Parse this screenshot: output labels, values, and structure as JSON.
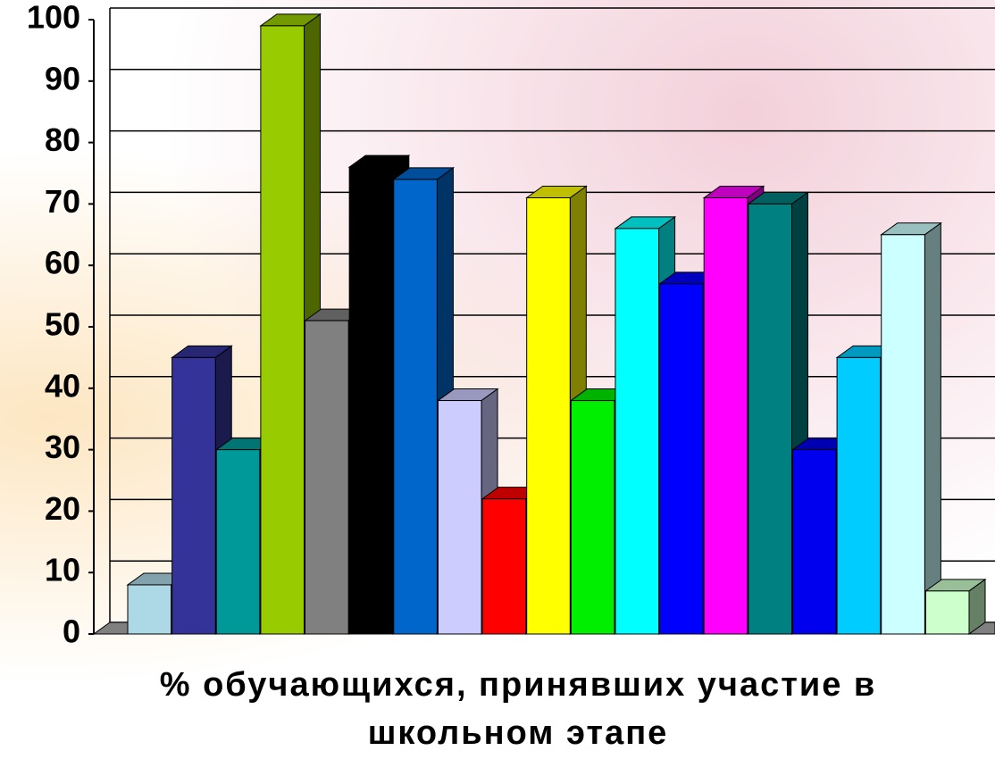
{
  "chart_data": {
    "type": "bar3d",
    "title": "% обучающихся, принявших участие в школьном этапе",
    "categories": [
      null,
      null,
      null,
      null,
      null,
      null,
      null,
      null,
      null,
      null,
      null,
      null,
      null,
      null,
      null,
      null,
      null,
      null,
      null
    ],
    "values": [
      8,
      45,
      30,
      99,
      51,
      76,
      74,
      38,
      22,
      71,
      38,
      66,
      57,
      71,
      70,
      30,
      45,
      65,
      7
    ],
    "colors": [
      "#add8e6",
      "#333399",
      "#009999",
      "#99cc00",
      "#808080",
      "#000000",
      "#0066cc",
      "#ccccff",
      "#ff0000",
      "#ffff00",
      "#00ee00",
      "#00ffff",
      "#0000ff",
      "#ff00ff",
      "#008080",
      "#0000ee",
      "#00ccff",
      "#ccffff",
      "#ccffcc"
    ],
    "ylim": [
      0,
      100
    ],
    "yticks": [
      0,
      10,
      20,
      30,
      40,
      50,
      60,
      70,
      80,
      90,
      100
    ],
    "grid": true
  }
}
